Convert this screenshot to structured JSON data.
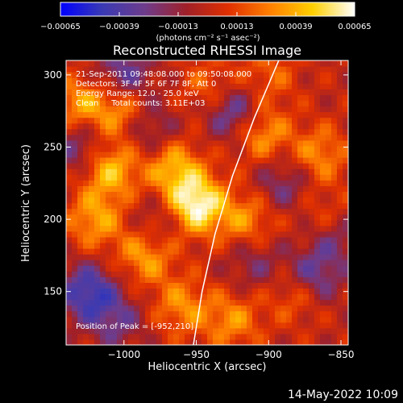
{
  "chart_data": {
    "type": "heatmap",
    "title": "Reconstructed RHESSI Image",
    "xlabel": "Heliocentric X (arcsec)",
    "ylabel": "Heliocentric Y (arcsec)",
    "xlim": [
      -1040,
      -845
    ],
    "ylim": [
      113,
      310
    ],
    "x_ticks": [
      -1000,
      -950,
      -900,
      -850
    ],
    "x_tick_labels": [
      "−1000",
      "−950",
      "−900",
      "−850"
    ],
    "y_ticks": [
      150,
      200,
      250,
      300
    ],
    "y_tick_labels": [
      "150",
      "200",
      "250",
      "300"
    ],
    "colorbar": {
      "range": [
        -0.00065,
        0.00065
      ],
      "ticks": [
        -0.00065,
        -0.00039,
        -0.00013,
        0.00013,
        0.00039,
        0.00065
      ],
      "tick_labels": [
        "−0.00065",
        "−0.00039",
        "−0.00013",
        "0.00013",
        "0.00039",
        "0.00065"
      ],
      "unit_label": "(photons cm⁻² s⁻¹ asec⁻²)",
      "colormap": [
        "#0000ff",
        "#3a3ab4",
        "#6e3c8c",
        "#a02028",
        "#e03000",
        "#ff8000",
        "#ffd000",
        "#ffffff"
      ]
    },
    "peak": [
      -952,
      210
    ],
    "blobs": [
      {
        "x": -950,
        "y": 210,
        "v": 0.00065
      },
      {
        "x": -965,
        "y": 235,
        "v": 0.0004
      },
      {
        "x": -1010,
        "y": 235,
        "v": 0.00045
      },
      {
        "x": -1000,
        "y": 275,
        "v": 0.0004
      },
      {
        "x": -1030,
        "y": 280,
        "v": 0.00035
      },
      {
        "x": -1020,
        "y": 200,
        "v": 0.00035
      },
      {
        "x": -985,
        "y": 175,
        "v": 0.00035
      },
      {
        "x": -960,
        "y": 140,
        "v": 0.0003
      },
      {
        "x": -915,
        "y": 200,
        "v": 0.0003
      },
      {
        "x": -905,
        "y": 260,
        "v": 0.00035
      },
      {
        "x": -865,
        "y": 245,
        "v": 0.0003
      },
      {
        "x": -860,
        "y": 200,
        "v": 0.00025
      },
      {
        "x": -880,
        "y": 150,
        "v": 0.0003
      },
      {
        "x": -925,
        "y": 130,
        "v": 0.0003
      },
      {
        "x": -900,
        "y": 300,
        "v": 0.0002
      },
      {
        "x": -940,
        "y": 290,
        "v": 0.00025
      },
      {
        "x": -1025,
        "y": 150,
        "v": -0.00045
      },
      {
        "x": -1030,
        "y": 250,
        "v": -0.0003
      },
      {
        "x": -1000,
        "y": 300,
        "v": -0.00035
      },
      {
        "x": -985,
        "y": 265,
        "v": -0.0003
      },
      {
        "x": -925,
        "y": 275,
        "v": -0.0004
      },
      {
        "x": -870,
        "y": 160,
        "v": -0.0004
      },
      {
        "x": -855,
        "y": 190,
        "v": -0.0003
      },
      {
        "x": -890,
        "y": 225,
        "v": -0.00025
      },
      {
        "x": -1005,
        "y": 130,
        "v": -0.00025
      },
      {
        "x": -975,
        "y": 200,
        "v": -0.0002
      },
      {
        "x": -910,
        "y": 170,
        "v": -0.0002
      }
    ],
    "limb": [
      [
        -893,
        310
      ],
      [
        -910,
        270
      ],
      [
        -925,
        230
      ],
      [
        -937,
        190
      ],
      [
        -946,
        150
      ],
      [
        -952,
        113
      ]
    ],
    "annotations": {
      "time_range": "21-Sep-2011 09:48:08.000 to 09:50:08.000",
      "detectors": "Detectors: 3F 4F 5F 6F 7F 8F, Att 0",
      "energy": "Energy Range: 12.0 - 25.0 keV",
      "clean": "Clean     Total counts: 3.11E+03",
      "peak_text": "Position of Peak = [-952,210]"
    }
  },
  "footer": {
    "timestamp": "14-May-2022 10:09"
  }
}
